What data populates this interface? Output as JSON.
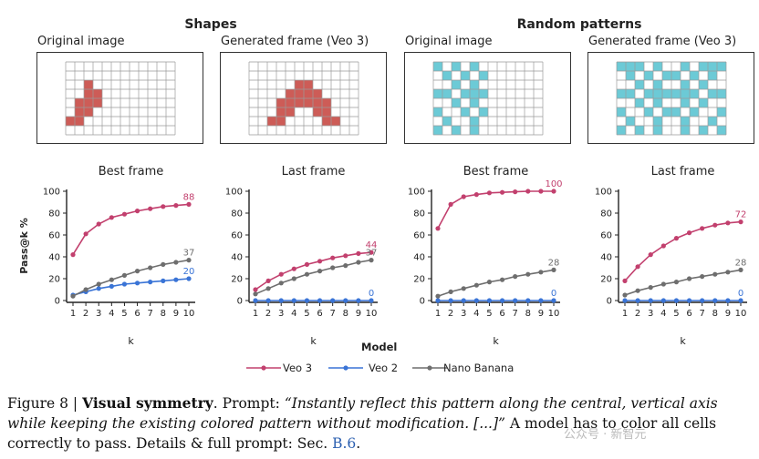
{
  "groups": [
    {
      "title": "Shapes"
    },
    {
      "title": "Random patterns"
    }
  ],
  "examples": [
    {
      "caption": "Original image",
      "color": "#cd5c57",
      "cells": [
        [
          2,
          2
        ],
        [
          3,
          2
        ],
        [
          3,
          3
        ],
        [
          4,
          1
        ],
        [
          4,
          2
        ],
        [
          4,
          3
        ],
        [
          5,
          1
        ],
        [
          5,
          2
        ],
        [
          6,
          0
        ],
        [
          6,
          1
        ]
      ]
    },
    {
      "caption": "Generated frame (Veo 3)",
      "color": "#cd5c57",
      "cells": [
        [
          2,
          5
        ],
        [
          2,
          6
        ],
        [
          3,
          4
        ],
        [
          3,
          5
        ],
        [
          3,
          6
        ],
        [
          3,
          7
        ],
        [
          4,
          3
        ],
        [
          4,
          4
        ],
        [
          4,
          5
        ],
        [
          4,
          6
        ],
        [
          4,
          7
        ],
        [
          4,
          8
        ],
        [
          5,
          3
        ],
        [
          5,
          4
        ],
        [
          5,
          7
        ],
        [
          5,
          8
        ],
        [
          6,
          2
        ],
        [
          6,
          3
        ],
        [
          6,
          8
        ],
        [
          6,
          9
        ]
      ]
    },
    {
      "caption": "Original image",
      "color": "#6ccad6",
      "cells": [
        [
          0,
          0
        ],
        [
          0,
          2
        ],
        [
          0,
          4
        ],
        [
          1,
          1
        ],
        [
          1,
          3
        ],
        [
          1,
          5
        ],
        [
          2,
          2
        ],
        [
          2,
          4
        ],
        [
          3,
          0
        ],
        [
          3,
          1
        ],
        [
          3,
          3
        ],
        [
          3,
          4
        ],
        [
          3,
          5
        ],
        [
          4,
          2
        ],
        [
          4,
          4
        ],
        [
          5,
          0
        ],
        [
          5,
          3
        ],
        [
          5,
          5
        ],
        [
          6,
          1
        ],
        [
          6,
          4
        ],
        [
          7,
          0
        ],
        [
          7,
          2
        ],
        [
          7,
          4
        ]
      ]
    },
    {
      "caption": "Generated frame (Veo 3)",
      "color": "#6ccad6",
      "cells": [
        [
          0,
          0
        ],
        [
          0,
          1
        ],
        [
          0,
          2
        ],
        [
          0,
          4
        ],
        [
          0,
          7
        ],
        [
          0,
          9
        ],
        [
          0,
          10
        ],
        [
          0,
          11
        ],
        [
          1,
          1
        ],
        [
          1,
          3
        ],
        [
          1,
          5
        ],
        [
          1,
          6
        ],
        [
          1,
          8
        ],
        [
          1,
          10
        ],
        [
          2,
          2
        ],
        [
          2,
          4
        ],
        [
          2,
          7
        ],
        [
          2,
          9
        ],
        [
          3,
          0
        ],
        [
          3,
          1
        ],
        [
          3,
          3
        ],
        [
          3,
          4
        ],
        [
          3,
          5
        ],
        [
          3,
          6
        ],
        [
          3,
          7
        ],
        [
          3,
          8
        ],
        [
          3,
          10
        ],
        [
          3,
          11
        ],
        [
          4,
          2
        ],
        [
          4,
          4
        ],
        [
          4,
          7
        ],
        [
          4,
          9
        ],
        [
          5,
          0
        ],
        [
          5,
          3
        ],
        [
          5,
          5
        ],
        [
          5,
          6
        ],
        [
          5,
          8
        ],
        [
          5,
          11
        ],
        [
          6,
          1
        ],
        [
          6,
          4
        ],
        [
          6,
          7
        ],
        [
          6,
          10
        ],
        [
          7,
          0
        ],
        [
          7,
          2
        ],
        [
          7,
          4
        ],
        [
          7,
          7
        ],
        [
          7,
          9
        ],
        [
          7,
          11
        ]
      ]
    }
  ],
  "grid": {
    "rows": 8,
    "cols": 12
  },
  "chart_data": [
    {
      "type": "line",
      "title": "Best frame",
      "xlabel": "k",
      "ylabel": "Pass@k %",
      "x": [
        1,
        2,
        3,
        4,
        5,
        6,
        7,
        8,
        9,
        10
      ],
      "ylim": [
        0,
        100
      ],
      "yticks": [
        0,
        20,
        40,
        60,
        80,
        100
      ],
      "series": [
        {
          "name": "Veo 3",
          "color": "#c2406e",
          "values": [
            42,
            61,
            70,
            76,
            79,
            82,
            84,
            86,
            87,
            88
          ],
          "end_label": "88"
        },
        {
          "name": "Veo 2",
          "color": "#3a74d6",
          "values": [
            5,
            8,
            11,
            13,
            15,
            16,
            17,
            18,
            19,
            20
          ],
          "end_label": "20"
        },
        {
          "name": "Nano Banana",
          "color": "#6e6e6e",
          "values": [
            4,
            10,
            15,
            19,
            23,
            27,
            30,
            33,
            35,
            37
          ],
          "end_label": "37"
        }
      ]
    },
    {
      "type": "line",
      "title": "Last frame",
      "xlabel": "k",
      "ylabel": "",
      "x": [
        1,
        2,
        3,
        4,
        5,
        6,
        7,
        8,
        9,
        10
      ],
      "ylim": [
        0,
        100
      ],
      "yticks": [
        0,
        20,
        40,
        60,
        80,
        100
      ],
      "series": [
        {
          "name": "Veo 3",
          "color": "#c2406e",
          "values": [
            10,
            18,
            24,
            29,
            33,
            36,
            39,
            41,
            43,
            44
          ],
          "end_label": "44"
        },
        {
          "name": "Veo 2",
          "color": "#3a74d6",
          "values": [
            0,
            0,
            0,
            0,
            0,
            0,
            0,
            0,
            0,
            0
          ],
          "end_label": "0"
        },
        {
          "name": "Nano Banana",
          "color": "#6e6e6e",
          "values": [
            6,
            11,
            16,
            20,
            24,
            27,
            30,
            32,
            35,
            37
          ],
          "end_label": "37"
        }
      ]
    },
    {
      "type": "line",
      "title": "Best frame",
      "xlabel": "k",
      "ylabel": "",
      "x": [
        1,
        2,
        3,
        4,
        5,
        6,
        7,
        8,
        9,
        10
      ],
      "ylim": [
        0,
        100
      ],
      "yticks": [
        0,
        20,
        40,
        60,
        80,
        100
      ],
      "series": [
        {
          "name": "Veo 3",
          "color": "#c2406e",
          "values": [
            66,
            88,
            95,
            97,
            98.5,
            99,
            99.5,
            100,
            100,
            100
          ],
          "end_label": "100"
        },
        {
          "name": "Veo 2",
          "color": "#3a74d6",
          "values": [
            0,
            0,
            0,
            0,
            0,
            0,
            0,
            0,
            0,
            0
          ],
          "end_label": "0"
        },
        {
          "name": "Nano Banana",
          "color": "#6e6e6e",
          "values": [
            4,
            8,
            11,
            14,
            17,
            19,
            22,
            24,
            26,
            28
          ],
          "end_label": "28"
        }
      ]
    },
    {
      "type": "line",
      "title": "Last frame",
      "xlabel": "k",
      "ylabel": "",
      "x": [
        1,
        2,
        3,
        4,
        5,
        6,
        7,
        8,
        9,
        10
      ],
      "ylim": [
        0,
        100
      ],
      "yticks": [
        0,
        20,
        40,
        60,
        80,
        100
      ],
      "series": [
        {
          "name": "Veo 3",
          "color": "#c2406e",
          "values": [
            18,
            31,
            42,
            50,
            57,
            62,
            66,
            69,
            71,
            72
          ],
          "end_label": "72"
        },
        {
          "name": "Veo 2",
          "color": "#3a74d6",
          "values": [
            0,
            0,
            0,
            0,
            0,
            0,
            0,
            0,
            0,
            0
          ],
          "end_label": "0"
        },
        {
          "name": "Nano Banana",
          "color": "#6e6e6e",
          "values": [
            5,
            9,
            12,
            15,
            17,
            20,
            22,
            24,
            26,
            28
          ],
          "end_label": "28"
        }
      ]
    }
  ],
  "legend": {
    "title": "Model",
    "items": [
      {
        "label": "Veo 3",
        "color": "#c2406e"
      },
      {
        "label": "Veo 2",
        "color": "#3a74d6"
      },
      {
        "label": "Nano Banana",
        "color": "#6e6e6e"
      }
    ]
  },
  "caption": {
    "figure_label": "Figure 8 | ",
    "bold_title": "Visual symmetry",
    "after_title": ". Prompt: ",
    "prompt_italic": "“Instantly reflect this pattern along the central, vertical axis while keeping the existing colored pattern without modification. [...]”",
    "rest": " A model has to color all cells correctly to pass. Details & full prompt: Sec. ",
    "ref": "B.6",
    "end": "."
  },
  "watermark": "公众号 · 新智元"
}
